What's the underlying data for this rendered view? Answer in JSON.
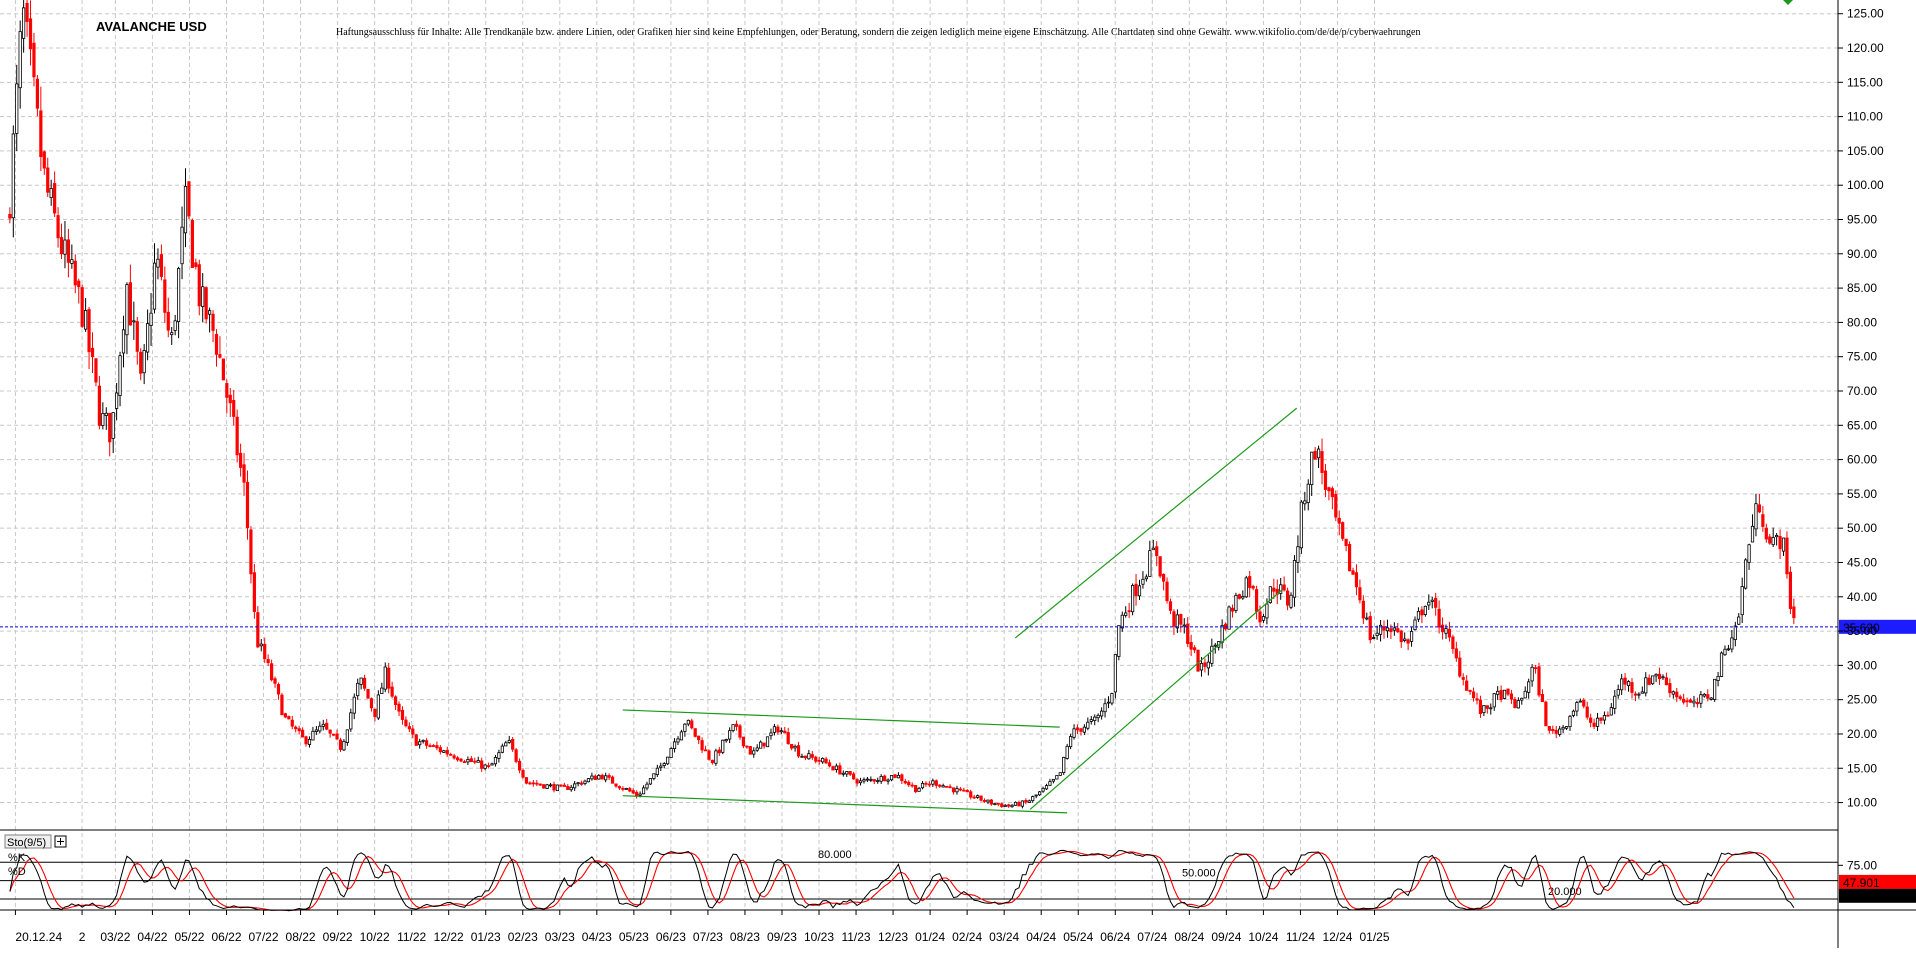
{
  "chart_data": {
    "type": "candlestick",
    "title": "AVALANCHE USD",
    "disclaimer": "Haftungsausschluss für Inhalte: Alle Trendkanäle bzw. andere Linien, oder Grafiken hier sind keine Empfehlungen, oder Beratung, sondern die zeigen lediglich meine eigene Einschätzung. Alle Chartdaten sind ohne Gewähr. www.wikifolio.com/de/de/p/cyberwaehrungen",
    "ylim": [
      6,
      127
    ],
    "yticks": [
      "125.00",
      "120.00",
      "115.00",
      "110.00",
      "105.00",
      "100.00",
      "95.00",
      "90.00",
      "85.00",
      "80.00",
      "75.00",
      "70.00",
      "65.00",
      "60.00",
      "55.00",
      "50.00",
      "45.00",
      "40.00",
      "35.00",
      "30.00",
      "25.00",
      "20.00",
      "15.00",
      "10.00"
    ],
    "xlabels": [
      "20.12.24",
      "2",
      "03/22",
      "04/22",
      "05/22",
      "06/22",
      "07/22",
      "08/22",
      "09/22",
      "10/22",
      "11/22",
      "12/22",
      "01/23",
      "02/23",
      "03/23",
      "04/23",
      "05/23",
      "06/23",
      "07/23",
      "08/23",
      "09/23",
      "10/23",
      "11/23",
      "12/23",
      "01/24",
      "02/24",
      "03/24",
      "04/24",
      "05/24",
      "06/24",
      "07/24",
      "08/24",
      "09/24",
      "10/24",
      "11/24",
      "12/24",
      "01/25"
    ],
    "grid": true,
    "current_price": 35.62,
    "current_price_label": "35.620",
    "price_path": [
      {
        "t": 0.0,
        "p": 95
      },
      {
        "t": 0.4,
        "p": 125
      },
      {
        "t": 1.0,
        "p": 100
      },
      {
        "t": 1.5,
        "p": 90
      },
      {
        "t": 2.0,
        "p": 82
      },
      {
        "t": 2.5,
        "p": 66
      },
      {
        "t": 2.8,
        "p": 64
      },
      {
        "t": 3.2,
        "p": 86
      },
      {
        "t": 3.6,
        "p": 70
      },
      {
        "t": 4.0,
        "p": 90
      },
      {
        "t": 4.4,
        "p": 76
      },
      {
        "t": 4.8,
        "p": 97
      },
      {
        "t": 5.2,
        "p": 83
      },
      {
        "t": 5.6,
        "p": 78
      },
      {
        "t": 6.0,
        "p": 67
      },
      {
        "t": 6.4,
        "p": 55
      },
      {
        "t": 6.7,
        "p": 34
      },
      {
        "t": 7.0,
        "p": 30
      },
      {
        "t": 7.5,
        "p": 22
      },
      {
        "t": 8.0,
        "p": 19
      },
      {
        "t": 8.5,
        "p": 21
      },
      {
        "t": 9.0,
        "p": 18
      },
      {
        "t": 9.5,
        "p": 28
      },
      {
        "t": 9.9,
        "p": 23
      },
      {
        "t": 10.2,
        "p": 29
      },
      {
        "t": 10.6,
        "p": 22
      },
      {
        "t": 11.0,
        "p": 19
      },
      {
        "t": 12.0,
        "p": 17
      },
      {
        "t": 13.0,
        "p": 15
      },
      {
        "t": 13.5,
        "p": 19
      },
      {
        "t": 14.0,
        "p": 13
      },
      {
        "t": 15.0,
        "p": 12
      },
      {
        "t": 16.0,
        "p": 14
      },
      {
        "t": 17.0,
        "p": 11
      },
      {
        "t": 17.6,
        "p": 15
      },
      {
        "t": 18.3,
        "p": 22
      },
      {
        "t": 19.0,
        "p": 16
      },
      {
        "t": 19.6,
        "p": 21
      },
      {
        "t": 20.1,
        "p": 17
      },
      {
        "t": 20.8,
        "p": 21
      },
      {
        "t": 21.4,
        "p": 17
      },
      {
        "t": 22.0,
        "p": 16
      },
      {
        "t": 23.0,
        "p": 13
      },
      {
        "t": 24.0,
        "p": 14
      },
      {
        "t": 24.5,
        "p": 12
      },
      {
        "t": 25.0,
        "p": 13
      },
      {
        "t": 26.0,
        "p": 11
      },
      {
        "t": 26.5,
        "p": 10
      },
      {
        "t": 27.0,
        "p": 9.5
      },
      {
        "t": 27.5,
        "p": 10
      },
      {
        "t": 28.0,
        "p": 12
      },
      {
        "t": 28.4,
        "p": 14
      },
      {
        "t": 28.7,
        "p": 20
      },
      {
        "t": 29.0,
        "p": 21
      },
      {
        "t": 29.4,
        "p": 22
      },
      {
        "t": 29.8,
        "p": 26
      },
      {
        "t": 30.0,
        "p": 36
      },
      {
        "t": 30.5,
        "p": 42
      },
      {
        "t": 31.0,
        "p": 47
      },
      {
        "t": 31.4,
        "p": 37
      },
      {
        "t": 31.8,
        "p": 35
      },
      {
        "t": 32.2,
        "p": 29
      },
      {
        "t": 32.6,
        "p": 33
      },
      {
        "t": 33.0,
        "p": 38
      },
      {
        "t": 33.5,
        "p": 43
      },
      {
        "t": 33.8,
        "p": 37
      },
      {
        "t": 34.2,
        "p": 42
      },
      {
        "t": 34.6,
        "p": 39
      },
      {
        "t": 35.0,
        "p": 55
      },
      {
        "t": 35.3,
        "p": 62
      },
      {
        "t": 35.7,
        "p": 54
      },
      {
        "t": 36.0,
        "p": 48
      },
      {
        "t": 36.4,
        "p": 42
      },
      {
        "t": 36.8,
        "p": 34
      },
      {
        "t": 37.3,
        "p": 36
      },
      {
        "t": 37.8,
        "p": 33
      },
      {
        "t": 38.3,
        "p": 40
      },
      {
        "t": 38.8,
        "p": 35
      },
      {
        "t": 39.3,
        "p": 28
      },
      {
        "t": 39.8,
        "p": 23
      },
      {
        "t": 40.3,
        "p": 26
      },
      {
        "t": 40.8,
        "p": 24
      },
      {
        "t": 41.2,
        "p": 30
      },
      {
        "t": 41.6,
        "p": 20
      },
      {
        "t": 42.0,
        "p": 21
      },
      {
        "t": 42.4,
        "p": 25
      },
      {
        "t": 42.8,
        "p": 21
      },
      {
        "t": 43.2,
        "p": 23
      },
      {
        "t": 43.6,
        "p": 28
      },
      {
        "t": 44.0,
        "p": 26
      },
      {
        "t": 44.5,
        "p": 29
      },
      {
        "t": 45.0,
        "p": 26
      },
      {
        "t": 45.5,
        "p": 24
      },
      {
        "t": 46.0,
        "p": 26
      },
      {
        "t": 46.4,
        "p": 33
      },
      {
        "t": 46.7,
        "p": 36
      },
      {
        "t": 47.0,
        "p": 48
      },
      {
        "t": 47.3,
        "p": 54
      },
      {
        "t": 47.6,
        "p": 47
      },
      {
        "t": 47.9,
        "p": 49
      },
      {
        "t": 48.1,
        "p": 40
      },
      {
        "t": 48.3,
        "p": 35
      }
    ],
    "trend_lines": [
      {
        "t1": 16.6,
        "p1": 23.5,
        "t2": 28.4,
        "p2": 21.0
      },
      {
        "t1": 16.6,
        "p1": 11.0,
        "t2": 28.6,
        "p2": 8.5
      },
      {
        "t1": 27.2,
        "p1": 34.0,
        "t2": 34.8,
        "p2": 67.5
      },
      {
        "t1": 27.6,
        "p1": 9.0,
        "t2": 34.4,
        "p2": 41.0
      }
    ],
    "indicator": {
      "name": "Sto(9/5)",
      "k_label": "%K",
      "d_label": "%D",
      "levels": [
        {
          "value": 80,
          "label": "80.000"
        },
        {
          "value": 50,
          "label": "50.000"
        },
        {
          "value": 20,
          "label": "20.000"
        }
      ],
      "yticks": [
        "75.00"
      ],
      "k_last": 25.182,
      "k_last_label": "25.182",
      "d_last": 47.901,
      "d_last_label": "47.901"
    }
  },
  "colors": {
    "bull": "#000000",
    "bear": "#ff0000",
    "grid": "#c8c8c8",
    "trend": "#1a9a1a",
    "price_line": "#0000ee",
    "price_box": "#1c1cff",
    "d_box": "#ff0000",
    "k_box": "#000000"
  }
}
